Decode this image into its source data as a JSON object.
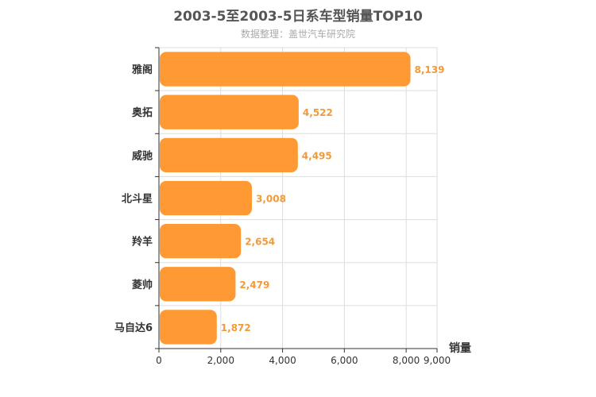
{
  "chart_data": {
    "type": "bar",
    "orientation": "horizontal",
    "title": "2003-5至2003-5日系车型销量TOP10",
    "subtitle": "数据整理：盖世汽车研究院",
    "categories": [
      "雅阁",
      "奥拓",
      "威驰",
      "北斗星",
      "羚羊",
      "菱帅",
      "马自达6"
    ],
    "values": [
      8139,
      4522,
      4495,
      3008,
      2654,
      2479,
      1872
    ],
    "value_labels": [
      "8,139",
      "4,522",
      "4,495",
      "3,008",
      "2,654",
      "2,479",
      "1,872"
    ],
    "x_ticks": [
      "0",
      "2,000",
      "4,000",
      "6,000",
      "8,000",
      "9,000"
    ],
    "x_tick_values": [
      0,
      2000,
      4000,
      6000,
      8000,
      9000
    ],
    "xlim": [
      0,
      9000
    ],
    "value_axis_label": "销量",
    "grid": true,
    "colors": {
      "bar": "#ff9933",
      "label": "#f29a38",
      "grid": "#dddddd",
      "axis": "#333333"
    }
  }
}
